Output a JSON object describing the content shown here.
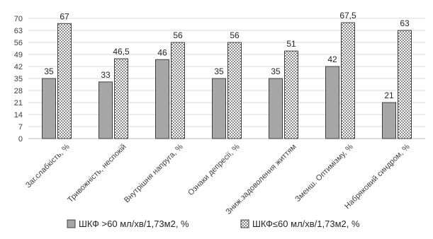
{
  "chart_data": {
    "type": "bar",
    "title": "",
    "xlabel": "",
    "ylabel": "",
    "ylim": [
      0,
      70
    ],
    "yticks": [
      0,
      7,
      14,
      21,
      28,
      35,
      42,
      49,
      56,
      63,
      70
    ],
    "grid": true,
    "legend_position": "bottom",
    "categories": [
      "Заг.слабкість, %",
      "Тривожність, неспокій",
      "Внутрішня напруга, %",
      "Ознаки депресії, %",
      "Зниж.задоволення життям",
      "Зменш. Оптимізму, %",
      "Набряковий синдром, %"
    ],
    "series": [
      {
        "name": "ШКФ >60 мл/хв/1,73м2, %",
        "values": [
          35,
          33,
          46,
          35,
          35,
          42,
          21
        ],
        "labels": [
          "35",
          "33",
          "46",
          "35",
          "35",
          "42",
          "21"
        ],
        "fill": "#a6a6a6",
        "pattern": "solid"
      },
      {
        "name": "ШКФ≤60 мл/хв/1,73м2, %",
        "values": [
          67,
          46.5,
          56,
          56,
          51,
          67.5,
          63
        ],
        "labels": [
          "67",
          "46,5",
          "56",
          "56",
          "51",
          "67,5",
          "63"
        ],
        "fill": "#ffffff",
        "pattern": "checker"
      }
    ]
  }
}
